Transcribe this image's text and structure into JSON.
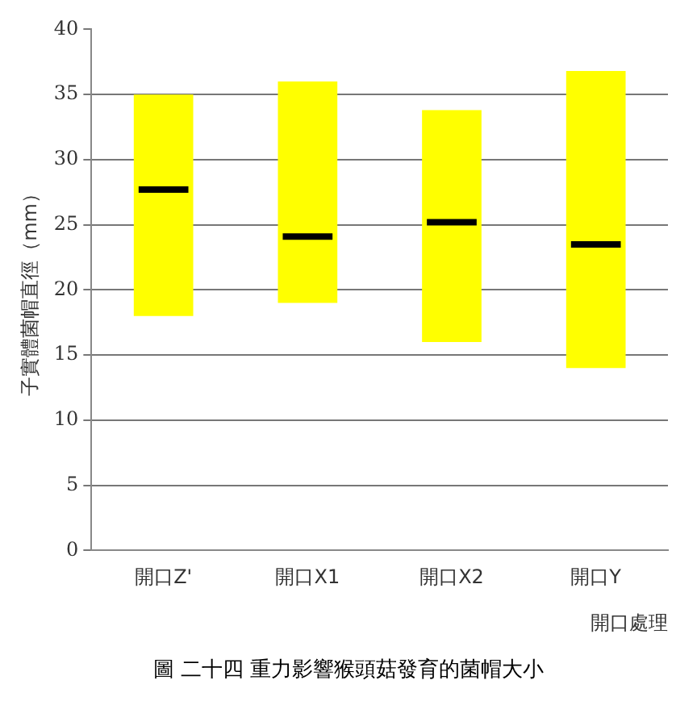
{
  "chart_data": {
    "type": "box",
    "title": "圖 二十四 重力影響猴頭菇發育的菌帽大小",
    "xlabel": "開口處理",
    "ylabel": "子實體菌帽直徑（mm）",
    "categories": [
      "開口Z'",
      "開口X1",
      "開口X2",
      "開口Y"
    ],
    "color": "#ffff00",
    "boxes": [
      {
        "low": 18,
        "q1": 18,
        "median": 27.7,
        "q3": 35,
        "high": 35
      },
      {
        "low": 19,
        "q1": 19,
        "median": 24.1,
        "q3": 36,
        "high": 36
      },
      {
        "low": 16,
        "q1": 16,
        "median": 25.2,
        "q3": 33.8,
        "high": 33.8
      },
      {
        "low": 14,
        "q1": 14,
        "median": 23.5,
        "q3": 36.8,
        "high": 36.8
      }
    ],
    "ylim": [
      0,
      40
    ],
    "yticks": [
      0,
      5,
      10,
      15,
      20,
      25,
      30,
      35,
      40
    ],
    "grid": "y"
  }
}
